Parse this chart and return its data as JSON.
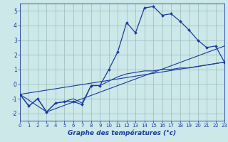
{
  "xlabel": "Graphe des températures (°c)",
  "bg_color": "#cce8e8",
  "line_color": "#1a3a9e",
  "grid_color": "#99bbbb",
  "xmin": 0,
  "xmax": 23,
  "ymin": -2.5,
  "ymax": 5.5,
  "yticks": [
    -2,
    -1,
    0,
    1,
    2,
    3,
    4,
    5
  ],
  "xticks": [
    0,
    1,
    2,
    3,
    4,
    5,
    6,
    7,
    8,
    9,
    10,
    11,
    12,
    13,
    14,
    15,
    16,
    17,
    18,
    19,
    20,
    21,
    22,
    23
  ],
  "line1_x": [
    0,
    1,
    2,
    3,
    4,
    5,
    6,
    7,
    8,
    9,
    10,
    11,
    12,
    13,
    14,
    15,
    16,
    17,
    18,
    19,
    20,
    21,
    22,
    23
  ],
  "line1_y": [
    -0.7,
    -1.5,
    -1.0,
    -1.9,
    -1.3,
    -1.2,
    -1.2,
    -1.4,
    -0.1,
    -0.1,
    1.0,
    2.2,
    4.2,
    3.5,
    5.2,
    5.3,
    4.7,
    4.8,
    4.3,
    3.7,
    3.0,
    2.5,
    2.6,
    1.5
  ],
  "line2_x": [
    0,
    1,
    2,
    3,
    4,
    5,
    6,
    7,
    8,
    9,
    10,
    11,
    12,
    13,
    14,
    15,
    16,
    17,
    18,
    19,
    20,
    21,
    22,
    23
  ],
  "line2_y": [
    -0.7,
    -1.5,
    -1.0,
    -1.9,
    -1.3,
    -1.2,
    -1.0,
    -1.3,
    -0.1,
    -0.1,
    0.2,
    0.5,
    0.7,
    0.8,
    0.9,
    0.9,
    1.0,
    1.0,
    1.1,
    1.1,
    1.2,
    1.3,
    1.4,
    1.5
  ],
  "line3_x": [
    0,
    23
  ],
  "line3_y": [
    -0.7,
    1.5
  ],
  "line4_x": [
    0,
    3,
    23
  ],
  "line4_y": [
    -0.7,
    -1.9,
    2.6
  ]
}
